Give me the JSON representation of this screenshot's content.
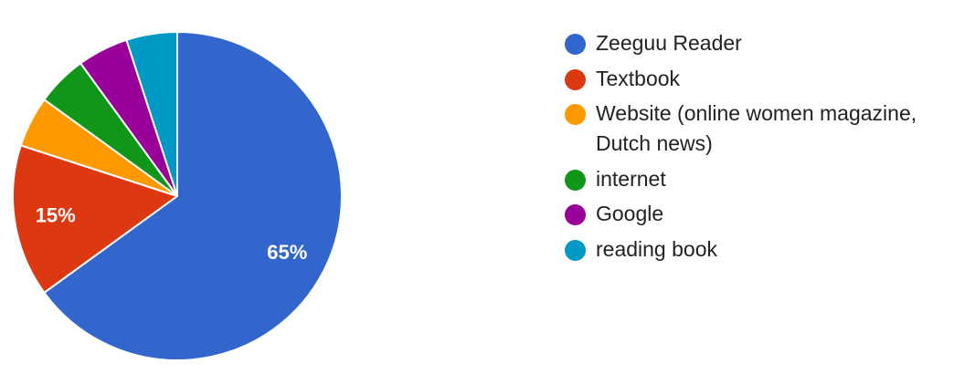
{
  "chart_data": {
    "type": "pie",
    "title": "",
    "start": "top",
    "direction": "clockwise",
    "labels": [
      "Zeeguu Reader",
      "Textbook",
      "Website (online women magazine, Dutch news)",
      "internet",
      "Google",
      "reading book"
    ],
    "values": [
      65,
      15,
      5,
      5,
      5,
      5
    ],
    "data_labels": [
      "65%",
      "15%",
      "",
      "",
      "",
      ""
    ],
    "colors": [
      "#3366CC",
      "#DC3912",
      "#FF9900",
      "#109618",
      "#990099",
      "#0099C6"
    ],
    "legend_position": "right"
  }
}
